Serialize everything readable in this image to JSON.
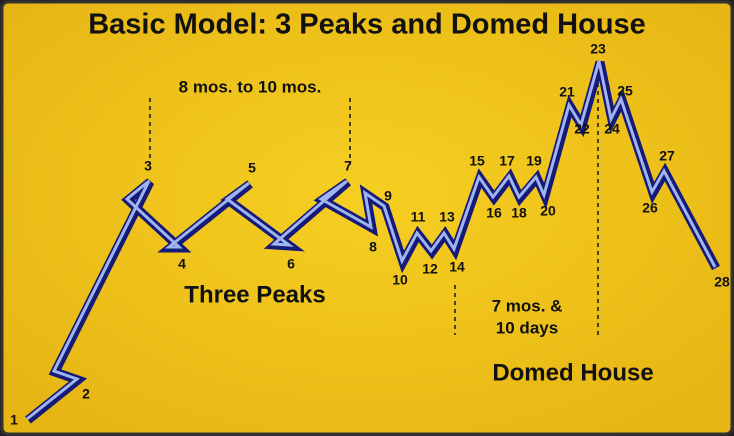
{
  "header": {
    "title": "Basic Model: 3 Peaks and Domed House"
  },
  "annotations": {
    "span_peaks": "8 mos. to 10 mos.",
    "three_peaks": "Three Peaks",
    "span_house_1": "7 mos. &",
    "span_house_2": "10 days",
    "domed_house": "Domed House"
  },
  "nodes": [
    {
      "label": "1"
    },
    {
      "label": "2"
    },
    {
      "label": "3"
    },
    {
      "label": "4"
    },
    {
      "label": "5"
    },
    {
      "label": "6"
    },
    {
      "label": "7"
    },
    {
      "label": "8"
    },
    {
      "label": "9"
    },
    {
      "label": "10"
    },
    {
      "label": "11"
    },
    {
      "label": "12"
    },
    {
      "label": "13"
    },
    {
      "label": "14"
    },
    {
      "label": "15"
    },
    {
      "label": "16"
    },
    {
      "label": "17"
    },
    {
      "label": "18"
    },
    {
      "label": "19"
    },
    {
      "label": "20"
    },
    {
      "label": "21"
    },
    {
      "label": "22"
    },
    {
      "label": "23"
    },
    {
      "label": "24"
    },
    {
      "label": "25"
    },
    {
      "label": "26"
    },
    {
      "label": "27"
    },
    {
      "label": "28"
    }
  ]
}
